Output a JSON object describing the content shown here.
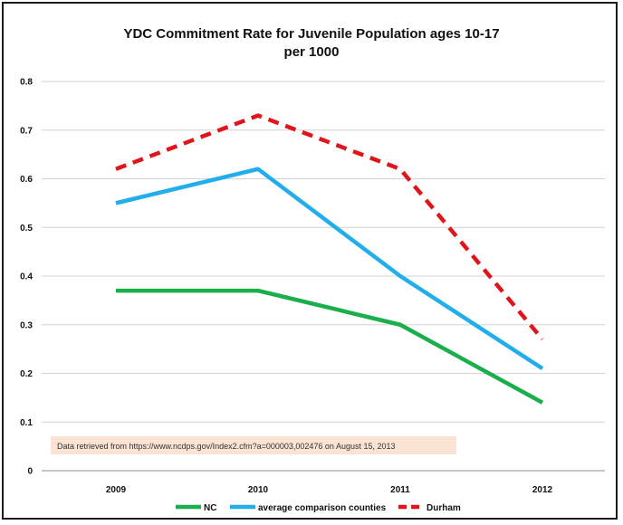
{
  "chart_data": {
    "type": "line",
    "title": "YDC Commitment Rate for Juvenile Population ages 10-17",
    "subtitle": "per 1000",
    "categories": [
      "2009",
      "2010",
      "2011",
      "2012"
    ],
    "ylim": [
      0,
      0.8
    ],
    "yticks": [
      "0",
      "0.1",
      "0.2",
      "0.3",
      "0.4",
      "0.5",
      "0.6",
      "0.7",
      "0.8"
    ],
    "grid": true,
    "legend_position": "bottom",
    "series": [
      {
        "name": "NC",
        "values": [
          0.37,
          0.37,
          0.3,
          0.14
        ],
        "color": "#1aaf4b",
        "dashed": false
      },
      {
        "name": "average comparison counties",
        "values": [
          0.55,
          0.62,
          0.4,
          0.21
        ],
        "color": "#21aeea",
        "dashed": false
      },
      {
        "name": "Durham",
        "values": [
          0.62,
          0.73,
          0.62,
          0.27
        ],
        "color": "#e0151b",
        "dashed": true
      }
    ],
    "annotation": "Data retrieved from https://www.ncdps.gov/Index2.cfm?a=000003,002476 on August 15, 2013",
    "annotation_bg": "#fbe3d3"
  }
}
